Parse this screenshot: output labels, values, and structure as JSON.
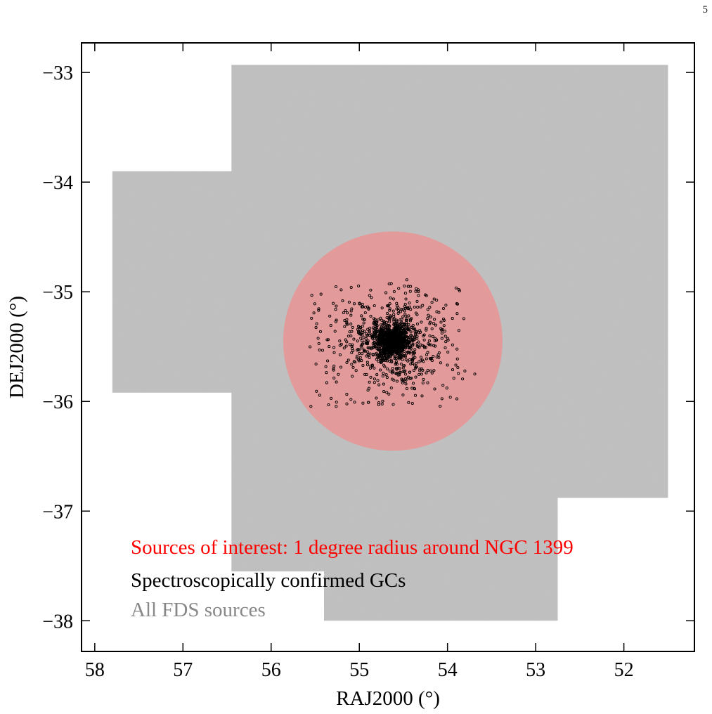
{
  "page_number": "5",
  "chart_data": {
    "type": "scatter",
    "xlabel": "RAJ2000 (°)",
    "ylabel": "DEJ2000 (°)",
    "xlim": [
      58.15,
      51.2
    ],
    "ylim": [
      -38.28,
      -32.73
    ],
    "x_ticks": [
      58,
      57,
      56,
      55,
      54,
      53,
      52
    ],
    "y_ticks": [
      -33,
      -34,
      -35,
      -36,
      -37,
      -38
    ],
    "x_tick_labels": [
      "58",
      "57",
      "56",
      "55",
      "54",
      "53",
      "52"
    ],
    "y_tick_labels": [
      "−33",
      "−34",
      "−35",
      "−36",
      "−37",
      "−38"
    ],
    "legend_position": "lower-left",
    "colors": {
      "all_sources": "#bfbfbf",
      "region_of_interest": "#e39a9a",
      "gcs": "#000000"
    },
    "series": [
      {
        "name": "All FDS sources",
        "color": "#888888",
        "kind": "footprint",
        "footprint_polygon_ra_dec": [
          [
            56.45,
            -32.93
          ],
          [
            51.5,
            -32.93
          ],
          [
            51.5,
            -36.88
          ],
          [
            52.75,
            -36.88
          ],
          [
            52.75,
            -38.0
          ],
          [
            55.4,
            -38.0
          ],
          [
            55.4,
            -37.55
          ],
          [
            56.45,
            -37.55
          ],
          [
            56.45,
            -35.92
          ],
          [
            57.8,
            -35.92
          ],
          [
            57.8,
            -33.9
          ],
          [
            56.45,
            -33.9
          ]
        ]
      },
      {
        "name": "Sources of interest: 1 degree radius around NGC 1399",
        "color": "#ff0000",
        "kind": "circle",
        "center_ra_dec": [
          54.62,
          -35.45
        ],
        "radius_dec_deg": 1.0
      },
      {
        "name": "Spectroscopically confirmed GCs",
        "color": "#000000",
        "kind": "points",
        "center_ra_dec": [
          54.62,
          -35.45
        ],
        "count": 1600,
        "ra_spread": [
          55.6,
          53.8
        ],
        "dec_spread": [
          -36.05,
          -34.95
        ]
      }
    ]
  }
}
